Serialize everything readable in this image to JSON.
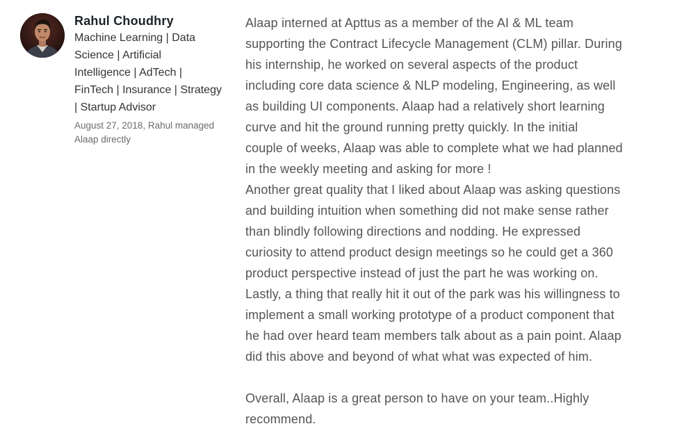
{
  "recommender": {
    "name": "Rahul Choudhry",
    "headline": "Machine Learning | Data\nScience | Artificial\nIntelligence | AdTech |\nFinTech | Insurance | Strategy\n| Startup Advisor",
    "meta": "August 27, 2018, Rahul managed\nAlaap directly",
    "avatar_icon": "profile-photo"
  },
  "recommendation": {
    "paragraph_1": "Alaap interned at Apttus as a member of the AI & ML team\nsupporting the Contract Lifecycle Management (CLM) pillar. During\nhis internship, he worked on several aspects of the product\nincluding core data science & NLP modeling, Engineering, as well\nas building UI components. Alaap had a relatively short learning\ncurve and hit the ground running pretty quickly. In the initial\ncouple of weeks, Alaap was able to complete what we had planned\nin the weekly meeting and asking for more !\nAnother great quality that I liked about Alaap was asking questions\nand building intuition when something did not make sense rather\nthan blindly following directions and nodding. He expressed\ncuriosity to attend product design meetings so he could get a 360\nproduct perspective instead of just the part he was working on.\nLastly, a thing that really hit it out of the park was his willingness to\nimplement a small working prototype of a product component that\nhe had over heard team members talk about as a pain point. Alaap\ndid this above and beyond of what what was expected of him.",
    "paragraph_2": "Overall, Alaap is a great person to have on your team..Highly\nrecommend."
  },
  "colors": {
    "name": "#1d2226",
    "headline": "#333333",
    "meta": "#6b6b6b",
    "body_text": "#545454",
    "background": "#ffffff"
  }
}
